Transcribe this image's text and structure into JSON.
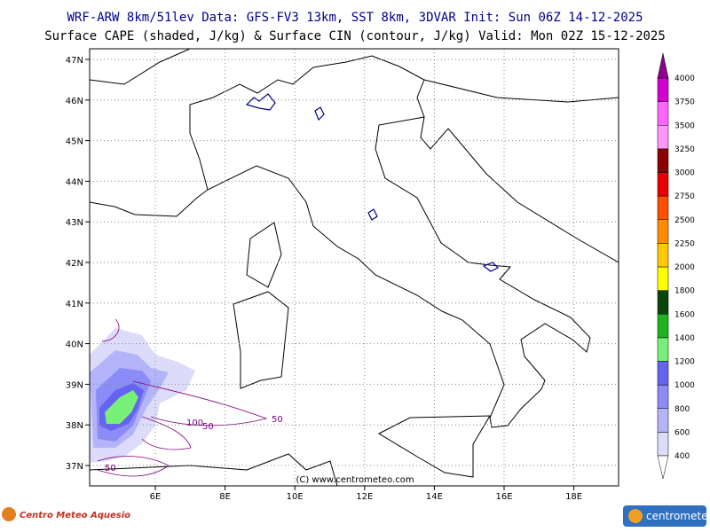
{
  "header": {
    "line1": "WRF-ARW 8km/51lev  Data: GFS-FV3 13km, SST 8km, 3DVAR  Init: Sun 06Z 14-12-2025",
    "line2": "Surface CAPE (shaded, J/kg) & Surface CIN (contour, J/kg)  Valid: Mon 02Z 15-12-2025"
  },
  "map": {
    "lat_labels": [
      "47N",
      "46N",
      "45N",
      "44N",
      "43N",
      "42N",
      "41N",
      "40N",
      "39N",
      "38N",
      "37N"
    ],
    "lon_labels": [
      "6E",
      "8E",
      "10E",
      "12E",
      "14E",
      "16E",
      "18E"
    ],
    "contour_labels": [
      "100",
      "50",
      "50",
      "50"
    ],
    "watermark": "(C) www.centrometeo.com"
  },
  "colorbar": {
    "labels": [
      "400",
      "600",
      "800",
      "1000",
      "1200",
      "1400",
      "1600",
      "1800",
      "2000",
      "2250",
      "2500",
      "2750",
      "3000",
      "3250",
      "3500",
      "3750",
      "4000"
    ],
    "colors": [
      "#dcdcfa",
      "#b4b4fa",
      "#8c8cf8",
      "#6464f0",
      "#78f078",
      "#1eb41e",
      "#0a460a",
      "#ffff00",
      "#ffc800",
      "#ff8c00",
      "#ff5000",
      "#e60000",
      "#8c0000",
      "#ff96ff",
      "#ff64ff",
      "#d200d2",
      "#8c008c"
    ]
  },
  "footer": {
    "left_logo": "Centro Meteo Aquesio",
    "right_logo": "centrometeo"
  }
}
